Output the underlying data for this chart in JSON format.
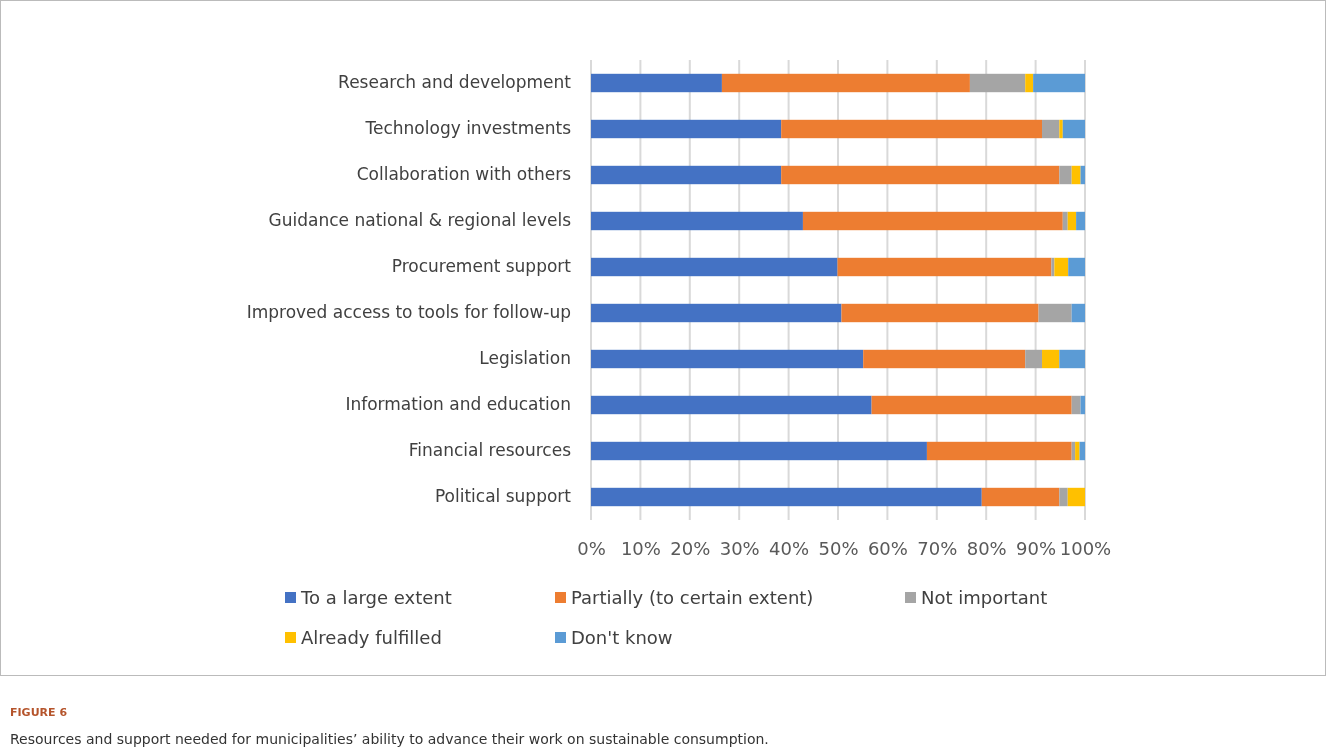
{
  "chart_data": {
    "type": "bar",
    "orientation": "horizontal",
    "stacked": true,
    "categories": [
      "Research and development",
      "Technology investments",
      "Collaboration with others",
      "Guidance national & regional levels",
      "Procurement support",
      "Improved access to tools for follow-up",
      "Legislation",
      "Information and education",
      "Financial resources",
      "Political support"
    ],
    "series": [
      {
        "name": "To a large extent",
        "color": "#4472c4",
        "values": [
          26.5,
          38.5,
          38.5,
          42.9,
          49.9,
          50.7,
          55.1,
          56.8,
          68.0,
          79.1
        ]
      },
      {
        "name": "Partially (to certain extent)",
        "color": "#ed7d31",
        "values": [
          50.2,
          52.8,
          56.3,
          52.6,
          43.3,
          39.9,
          32.8,
          40.5,
          29.3,
          15.7
        ]
      },
      {
        "name": "Not important",
        "color": "#a5a5a5",
        "values": [
          11.2,
          3.5,
          2.5,
          1.0,
          0.6,
          6.7,
          3.4,
          1.8,
          0.7,
          1.7
        ]
      },
      {
        "name": "Already fulfilled",
        "color": "#ffc000",
        "values": [
          1.6,
          0.7,
          1.8,
          1.7,
          2.8,
          0,
          3.5,
          0,
          0.9,
          3.5
        ]
      },
      {
        "name": "Don't know",
        "color": "#5b9bd5",
        "values": [
          10.5,
          4.5,
          0.9,
          1.8,
          3.4,
          2.7,
          5.2,
          0.9,
          1.1,
          0
        ]
      }
    ],
    "xlim": [
      0,
      100
    ],
    "xticks": [
      {
        "value": 0,
        "label": "0%"
      },
      {
        "value": 10,
        "label": "10%"
      },
      {
        "value": 20,
        "label": "20%"
      },
      {
        "value": 30,
        "label": "30%"
      },
      {
        "value": 40,
        "label": "40%"
      },
      {
        "value": 50,
        "label": "50%"
      },
      {
        "value": 60,
        "label": "60%"
      },
      {
        "value": 70,
        "label": "70%"
      },
      {
        "value": 80,
        "label": "80%"
      },
      {
        "value": 90,
        "label": "90%"
      },
      {
        "value": 100,
        "label": "100%"
      }
    ],
    "grid": "x",
    "legend": "bottom",
    "annotations": [
      "FIGURE 6",
      "Resources and support needed for municipalities’ ability to advance their work on sustainable consumption."
    ]
  }
}
